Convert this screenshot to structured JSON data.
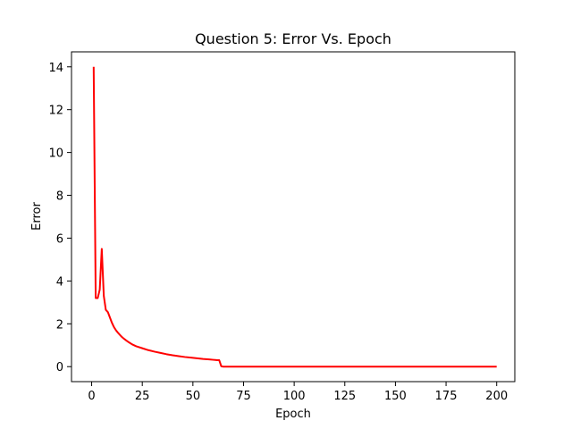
{
  "chart_data": {
    "type": "line",
    "title": "Question 5: Error Vs. Epoch",
    "xlabel": "Epoch",
    "ylabel": "Error",
    "xlim": [
      -9.95,
      208.95
    ],
    "ylim": [
      -0.7,
      14.7
    ],
    "xticks": [
      0,
      25,
      50,
      75,
      100,
      125,
      150,
      175,
      200
    ],
    "yticks": [
      0,
      2,
      4,
      6,
      8,
      10,
      12,
      14
    ],
    "grid": false,
    "legend": "none",
    "series": [
      {
        "color": "#ff0000",
        "x": [
          1,
          2,
          3,
          4,
          5,
          6,
          7,
          8,
          9,
          10,
          11,
          12,
          13,
          14,
          15,
          16,
          17,
          18,
          19,
          20,
          22,
          25,
          28,
          31,
          34,
          37,
          40,
          43,
          46,
          49,
          52,
          55,
          58,
          60,
          61,
          62,
          63,
          64,
          65,
          70,
          80,
          90,
          100,
          120,
          140,
          160,
          180,
          200
        ],
        "y": [
          14.0,
          3.2,
          3.2,
          3.6,
          5.5,
          3.3,
          2.65,
          2.55,
          2.3,
          2.05,
          1.85,
          1.7,
          1.58,
          1.48,
          1.38,
          1.3,
          1.23,
          1.16,
          1.1,
          1.04,
          0.95,
          0.86,
          0.77,
          0.7,
          0.64,
          0.58,
          0.53,
          0.49,
          0.45,
          0.42,
          0.39,
          0.36,
          0.34,
          0.32,
          0.31,
          0.3,
          0.3,
          0.02,
          0.0,
          0.0,
          0.0,
          0.0,
          0.0,
          0.0,
          0.0,
          0.0,
          0.0,
          0.0
        ]
      }
    ]
  }
}
